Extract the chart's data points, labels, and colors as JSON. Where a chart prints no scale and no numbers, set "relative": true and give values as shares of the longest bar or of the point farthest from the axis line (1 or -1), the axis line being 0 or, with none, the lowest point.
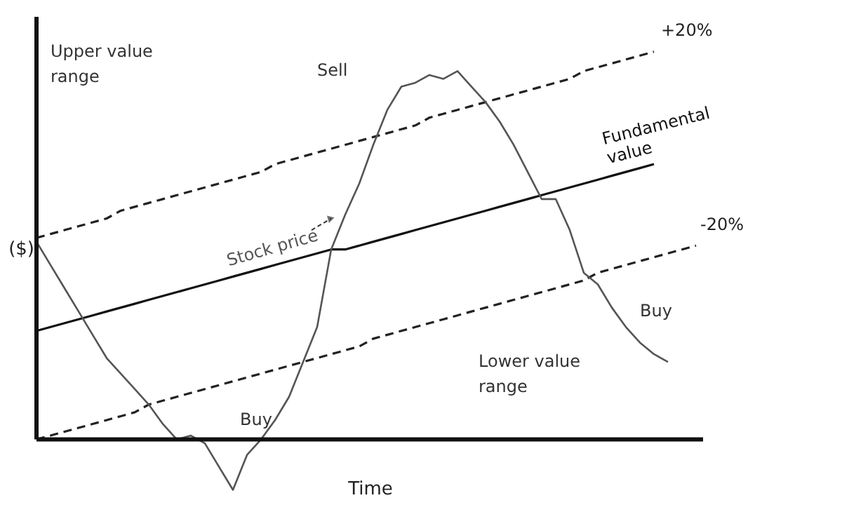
{
  "chart_data": {
    "type": "line",
    "relative": true,
    "xlabel": "Time",
    "ylabel": "($)",
    "grid": false,
    "marker": "none",
    "categories": [
      null,
      null,
      null,
      null,
      null,
      null,
      null,
      null,
      null,
      null,
      null,
      null,
      null,
      null,
      null,
      null,
      null,
      null,
      null,
      null,
      null,
      null,
      null,
      null,
      null,
      null,
      null,
      null,
      null,
      null,
      null,
      null,
      null,
      null,
      null,
      null,
      null,
      null,
      null,
      null,
      null,
      null,
      null,
      null,
      null,
      null,
      null,
      null
    ],
    "series": [
      {
        "name": "+20%",
        "color": "#222222",
        "line_style": "dashed",
        "values": [
          0.52,
          0.53,
          0.54,
          0.55,
          0.56,
          0.57,
          0.59,
          0.6,
          0.61,
          0.62,
          0.63,
          0.64,
          0.65,
          0.66,
          0.67,
          0.68,
          0.69,
          0.71,
          0.72,
          0.73,
          0.74,
          0.75,
          0.76,
          0.77,
          0.78,
          0.79,
          0.8,
          0.81,
          0.83,
          0.84,
          0.85,
          0.86,
          0.87,
          0.88,
          0.89,
          0.9,
          0.91,
          0.92,
          0.93,
          0.95,
          0.96,
          0.97,
          0.98,
          0.99,
          1.0,
          null,
          null,
          null
        ]
      },
      {
        "name": "Fundamental value",
        "color": "#111111",
        "line_style": "solid",
        "values": [
          0.28,
          0.29,
          0.3,
          0.31,
          0.32,
          0.33,
          0.34,
          0.35,
          0.36,
          0.37,
          0.38,
          0.39,
          0.4,
          0.41,
          0.42,
          0.43,
          0.44,
          0.45,
          0.46,
          0.47,
          0.48,
          0.49,
          0.49,
          0.5,
          0.51,
          0.52,
          0.53,
          0.54,
          0.55,
          0.56,
          0.57,
          0.58,
          0.59,
          0.6,
          0.61,
          0.62,
          0.63,
          0.64,
          0.65,
          0.66,
          0.67,
          0.68,
          0.69,
          0.7,
          0.71,
          null,
          null,
          null
        ]
      },
      {
        "name": "-20%",
        "color": "#222222",
        "line_style": "dashed",
        "values": [
          0,
          0.01,
          0.02,
          0.03,
          0.04,
          0.05,
          0.06,
          0.07,
          0.09,
          0.1,
          0.11,
          0.12,
          0.13,
          0.14,
          0.15,
          0.16,
          0.17,
          0.18,
          0.19,
          0.2,
          0.21,
          0.22,
          0.23,
          0.24,
          0.26,
          0.27,
          0.28,
          0.29,
          0.3,
          0.31,
          0.32,
          0.33,
          0.34,
          0.35,
          0.36,
          0.37,
          0.38,
          0.39,
          0.4,
          0.41,
          0.43,
          0.44,
          0.45,
          0.46,
          0.47,
          0.48,
          0.49,
          0.5
        ]
      },
      {
        "name": "Stock price",
        "color": "#555555",
        "line_style": "solid",
        "values": [
          0.51,
          0.45,
          0.39,
          0.33,
          0.27,
          0.21,
          0.17,
          0.13,
          0.09,
          0.04,
          0,
          0.01,
          -0.01,
          -0.07,
          -0.13,
          -0.04,
          0,
          0.05,
          0.11,
          0.2,
          0.29,
          0.49,
          0.58,
          0.66,
          0.76,
          0.85,
          0.91,
          0.92,
          0.94,
          0.93,
          0.95,
          0.91,
          0.87,
          0.82,
          0.76,
          0.69,
          0.62,
          0.62,
          0.54,
          0.43,
          0.4,
          0.34,
          0.29,
          0.25,
          0.22,
          0.2,
          null,
          null
        ]
      }
    ],
    "annotations": [
      "Upper value range",
      "Sell",
      "Buy",
      "Lower value range",
      "Buy"
    ]
  }
}
